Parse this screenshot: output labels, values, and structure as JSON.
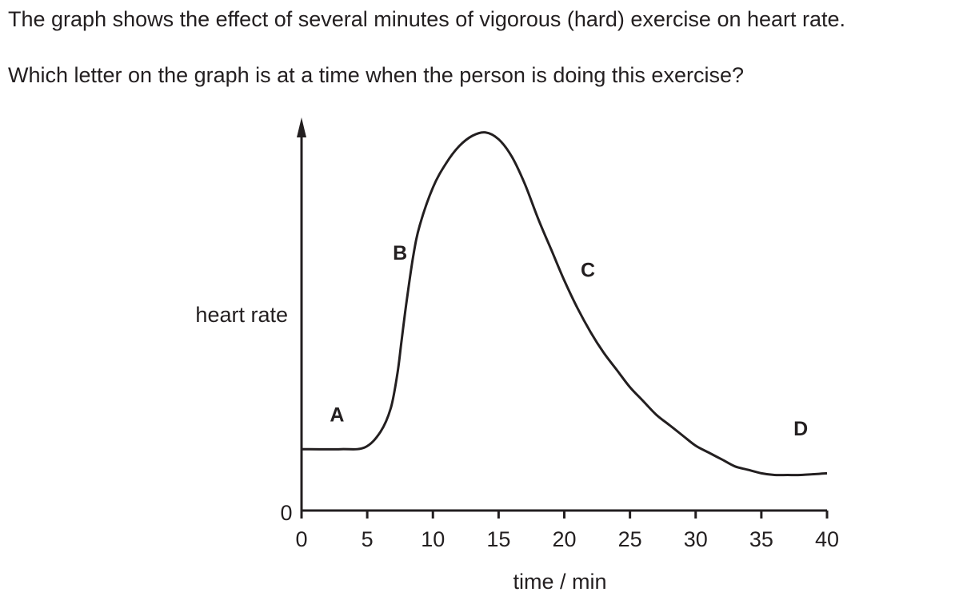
{
  "question": {
    "line1": "The graph shows the effect of several minutes of vigorous (hard) exercise on heart rate.",
    "line2": "Which letter on the graph is at a time when the person is doing this exercise?"
  },
  "chart_data": {
    "type": "line",
    "title": "",
    "xlabel": "time / min",
    "ylabel": "heart rate",
    "xlim": [
      0,
      40
    ],
    "x_ticks": [
      0,
      5,
      10,
      15,
      20,
      25,
      30,
      35,
      40
    ],
    "y_origin_label": "0",
    "y_scale": "no numeric scale shown (relative)",
    "grid": false,
    "series": [
      {
        "x": [
          0,
          3,
          4.8,
          6,
          6.8,
          7.3,
          7.6,
          8,
          8.5,
          9,
          10,
          11,
          12,
          13,
          14,
          15,
          16,
          17,
          18,
          19,
          20,
          21,
          22,
          23,
          24,
          25,
          26,
          27,
          28,
          29,
          30,
          31,
          32,
          33,
          34,
          35,
          36,
          37,
          38,
          40
        ],
        "y": [
          0.09,
          0.09,
          0.095,
          0.14,
          0.21,
          0.31,
          0.4,
          0.52,
          0.65,
          0.74,
          0.85,
          0.92,
          0.97,
          1.0,
          1.01,
          0.99,
          0.94,
          0.86,
          0.76,
          0.67,
          0.58,
          0.5,
          0.43,
          0.37,
          0.32,
          0.27,
          0.23,
          0.19,
          0.16,
          0.13,
          0.1,
          0.08,
          0.06,
          0.04,
          0.03,
          0.02,
          0.015,
          0.015,
          0.015,
          0.02
        ]
      }
    ],
    "annotations": [
      {
        "label": "A",
        "x": 2.7,
        "y": 0.17
      },
      {
        "label": "B",
        "x": 7.5,
        "y": 0.64
      },
      {
        "label": "C",
        "x": 21.8,
        "y": 0.59
      },
      {
        "label": "D",
        "x": 38,
        "y": 0.13
      }
    ]
  }
}
